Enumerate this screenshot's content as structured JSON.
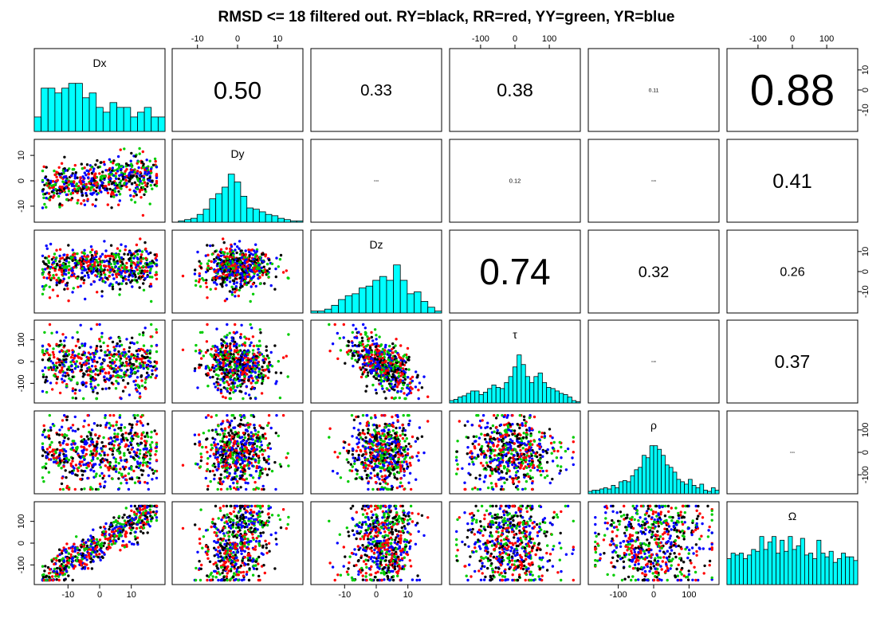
{
  "chart_data": {
    "type": "scatter",
    "title": "RMSD <= 18 filtered out. RY=black, RR=red, YY=green, YR=blue",
    "variables": [
      "Dx",
      "Dy",
      "Dz",
      "τ",
      "ρ",
      "Ω"
    ],
    "ranges": [
      [
        -19,
        19
      ],
      [
        -15,
        15
      ],
      [
        -19,
        19
      ],
      [
        -175,
        175
      ],
      [
        -170,
        170
      ],
      [
        -175,
        175
      ]
    ],
    "ticks": [
      [
        -10,
        0,
        10
      ],
      [
        -10,
        0,
        10
      ],
      [
        -10,
        0,
        10
      ],
      [
        -100,
        0,
        100
      ],
      [
        -100,
        0,
        100
      ],
      [
        -100,
        0,
        100
      ]
    ],
    "groups": [
      {
        "name": "RY",
        "color": "#000000"
      },
      {
        "name": "RR",
        "color": "#ff0000"
      },
      {
        "name": "YY",
        "color": "#00cc00"
      },
      {
        "name": "YR",
        "color": "#0000ff"
      }
    ],
    "histograms": [
      {
        "variable": "Dx",
        "counts": [
          3,
          9,
          9,
          8,
          9,
          10,
          10,
          7,
          8,
          5,
          4,
          6,
          5,
          5,
          3,
          4,
          5,
          3,
          3
        ]
      },
      {
        "variable": "Dy",
        "counts": [
          0,
          1,
          2,
          3,
          6,
          10,
          18,
          22,
          27,
          37,
          31,
          20,
          11,
          10,
          8,
          6,
          5,
          3,
          2,
          1,
          1
        ]
      },
      {
        "variable": "Dz",
        "counts": [
          1,
          1,
          2,
          4,
          7,
          9,
          10,
          13,
          14,
          17,
          19,
          17,
          25,
          17,
          10,
          11,
          6,
          3,
          1
        ]
      },
      {
        "variable": "τ",
        "counts": [
          2,
          3,
          5,
          6,
          8,
          10,
          10,
          7,
          9,
          12,
          15,
          13,
          12,
          17,
          22,
          30,
          40,
          32,
          22,
          17,
          22,
          25,
          17,
          13,
          12,
          10,
          8,
          7,
          5,
          2,
          1
        ]
      },
      {
        "variable": "ρ",
        "counts": [
          2,
          3,
          3,
          4,
          5,
          4,
          7,
          5,
          10,
          11,
          10,
          15,
          20,
          22,
          32,
          30,
          40,
          40,
          37,
          32,
          24,
          22,
          18,
          12,
          10,
          8,
          12,
          7,
          5,
          8,
          3,
          2,
          5,
          3
        ]
      },
      {
        "variable": "Ω",
        "counts": [
          14,
          17,
          16,
          17,
          14,
          16,
          19,
          18,
          26,
          19,
          23,
          26,
          17,
          24,
          18,
          26,
          19,
          21,
          25,
          16,
          17,
          14,
          24,
          17,
          15,
          18,
          12,
          14,
          17,
          15,
          15,
          13
        ]
      }
    ],
    "correlations": [
      {
        "row": 0,
        "col": 1,
        "value": "0.50"
      },
      {
        "row": 0,
        "col": 2,
        "value": "0.33"
      },
      {
        "row": 0,
        "col": 3,
        "value": "0.38"
      },
      {
        "row": 0,
        "col": 4,
        "value": "0.11"
      },
      {
        "row": 0,
        "col": 5,
        "value": "0.88"
      },
      {
        "row": 1,
        "col": 2,
        "value": "0.04"
      },
      {
        "row": 1,
        "col": 3,
        "value": "0.12"
      },
      {
        "row": 1,
        "col": 4,
        "value": "0.03"
      },
      {
        "row": 1,
        "col": 5,
        "value": "0.41"
      },
      {
        "row": 2,
        "col": 3,
        "value": "0.74"
      },
      {
        "row": 2,
        "col": 4,
        "value": "0.32"
      },
      {
        "row": 2,
        "col": 5,
        "value": "0.26"
      },
      {
        "row": 3,
        "col": 4,
        "value": "0.00"
      },
      {
        "row": 3,
        "col": 5,
        "value": "0.37"
      },
      {
        "row": 4,
        "col": 5,
        "value": "0.01"
      }
    ],
    "scatter_points_per_panel": 600,
    "grid": false,
    "legend": "none"
  }
}
